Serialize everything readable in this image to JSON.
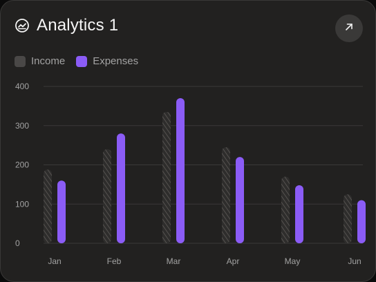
{
  "card": {
    "title": "Analytics 1",
    "title_icon": "trend-chart-icon",
    "open_icon": "arrow-up-right-icon"
  },
  "colors": {
    "income": "#4a4847",
    "expenses": "#8b5cf6",
    "grid": "#3a3938",
    "card": "#222120"
  },
  "chart_data": {
    "type": "bar",
    "title": "Analytics 1",
    "categories": [
      "Jan",
      "Feb",
      "Mar",
      "Apr",
      "May",
      "Jun"
    ],
    "series": [
      {
        "name": "Income",
        "values": [
          188,
          240,
          335,
          245,
          170,
          125
        ],
        "style": "hatched"
      },
      {
        "name": "Expenses",
        "values": [
          160,
          280,
          370,
          220,
          148,
          110
        ],
        "style": "solid"
      }
    ],
    "y_ticks": [
      "0",
      "100",
      "200",
      "300",
      "400"
    ],
    "ylim": [
      0,
      400
    ],
    "xlabel": "",
    "ylabel": "",
    "grid": true,
    "legend_position": "top-left"
  }
}
